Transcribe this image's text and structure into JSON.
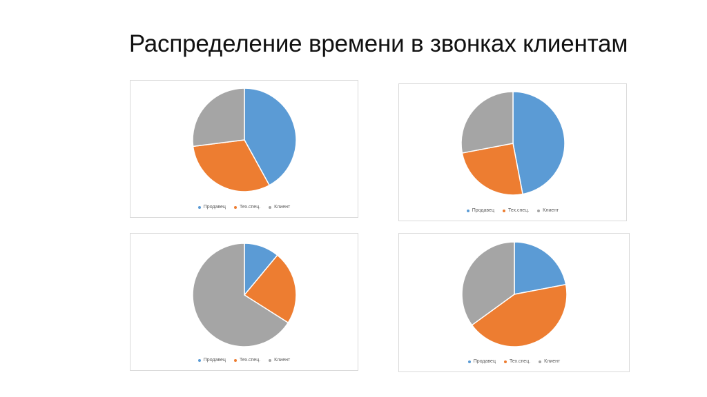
{
  "title": "Распределение времени в звонках клиентам",
  "legend": [
    "Продавец",
    "Тех.спец.",
    "Клиент"
  ],
  "colors": {
    "seller": "#5b9bd5",
    "tech": "#ed7d31",
    "client": "#a5a5a5"
  },
  "chart_data": [
    {
      "type": "pie",
      "categories": [
        "Продавец",
        "Тех.спец.",
        "Клиент"
      ],
      "values": [
        42,
        31,
        27
      ]
    },
    {
      "type": "pie",
      "categories": [
        "Продавец",
        "Тех.спец.",
        "Клиент"
      ],
      "values": [
        47,
        25,
        28
      ]
    },
    {
      "type": "pie",
      "categories": [
        "Продавец",
        "Тех.спец.",
        "Клиент"
      ],
      "values": [
        11,
        23,
        66
      ]
    },
    {
      "type": "pie",
      "categories": [
        "Продавец",
        "Тех.спец.",
        "Клиент"
      ],
      "values": [
        22,
        43,
        35
      ]
    }
  ]
}
